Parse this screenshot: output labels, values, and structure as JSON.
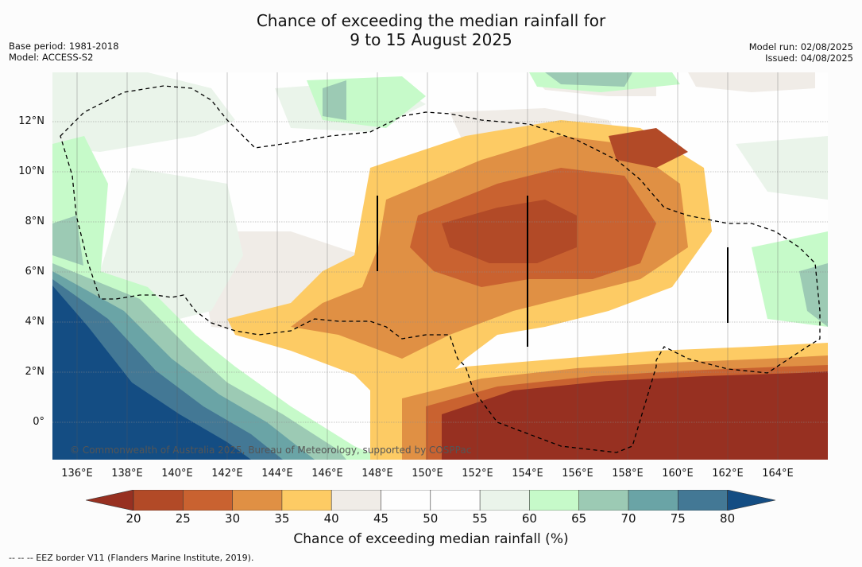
{
  "title": {
    "line1": "Chance of exceeding the median rainfall for",
    "line2": "9 to 15 August 2025"
  },
  "meta_left": {
    "base_period": "Base period: 1981-2018",
    "model": "Model: ACCESS-S2"
  },
  "meta_right": {
    "model_run": "Model run: 02/08/2025",
    "issued": "Issued: 04/08/2025"
  },
  "map": {
    "lon_labels": [
      "136°E",
      "138°E",
      "140°E",
      "142°E",
      "144°E",
      "146°E",
      "148°E",
      "150°E",
      "152°E",
      "154°E",
      "156°E",
      "158°E",
      "160°E",
      "162°E",
      "164°E"
    ],
    "lat_labels": [
      "12°N",
      "10°N",
      "8°N",
      "6°N",
      "4°N",
      "2°N",
      "0°"
    ],
    "credit": "© Commonwealth of Australia 2025, Bureau of Meteorology, supported by COSPPac"
  },
  "colorbar": {
    "label": "Chance of exceeding median rainfall (%)",
    "ticks": [
      "20",
      "25",
      "30",
      "35",
      "40",
      "45",
      "50",
      "55",
      "60",
      "65",
      "70",
      "75",
      "80"
    ],
    "colors": {
      "below_20": "#973021",
      "c20_25": "#b24a27",
      "c25_30": "#c96230",
      "c30_35": "#e09044",
      "c35_40": "#fdcb64",
      "c40_45": "#f0ece7",
      "c45_55": "#fefefe",
      "c55_60": "#eaf4ea",
      "c60_65": "#c6fac9",
      "c65_70": "#9ccab4",
      "c70_75": "#6aa4a6",
      "c75_80": "#437895",
      "above_80": "#144d83"
    }
  },
  "footer": {
    "legend": "-- -- -- EEZ border V11 (Flanders Marine Institute, 2019)."
  }
}
